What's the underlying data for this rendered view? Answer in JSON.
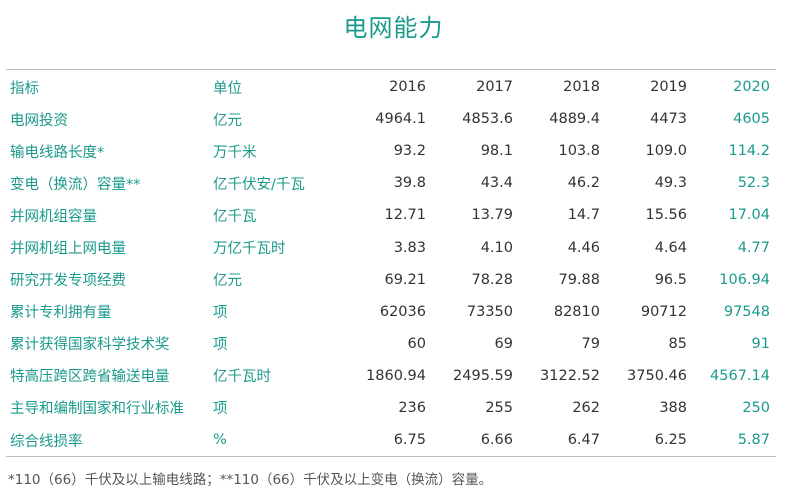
{
  "title": "电网能力",
  "header": [
    "指标",
    "单位",
    "2016",
    "2017",
    "2018",
    "2019",
    "2020"
  ],
  "rows": [
    {
      "label": "电网投资",
      "unit": "亿元",
      "values": [
        "4964.1",
        "4853.6",
        "4889.4",
        "4473",
        "4605"
      ]
    },
    {
      "label": "输电线路长度*",
      "unit": "万千米",
      "values": [
        "93.2",
        "98.1",
        "103.8",
        "109.0",
        "114.2"
      ]
    },
    {
      "label": "变电（换流）容量**",
      "unit": "亿千伏安/千瓦",
      "values": [
        "39.8",
        "43.4",
        "46.2",
        "49.3",
        "52.3"
      ]
    },
    {
      "label": "并网机组容量",
      "unit": "亿千瓦",
      "values": [
        "12.71",
        "13.79",
        "14.7",
        "15.56",
        "17.04"
      ]
    },
    {
      "label": "并网机组上网电量",
      "unit": "万亿千瓦时",
      "values": [
        "3.83",
        "4.10",
        "4.46",
        "4.64",
        "4.77"
      ]
    },
    {
      "label": "研究开发专项经费",
      "unit": "亿元",
      "values": [
        "69.21",
        "78.28",
        "79.88",
        "96.5",
        "106.94"
      ]
    },
    {
      "label": "累计专利拥有量",
      "unit": "项",
      "values": [
        "62036",
        "73350",
        "82810",
        "90712",
        "97548"
      ]
    },
    {
      "label": "累计获得国家科学技术奖",
      "unit": "项",
      "values": [
        "60",
        "69",
        "79",
        "85",
        "91"
      ]
    },
    {
      "label": "特高压跨区跨省输送电量",
      "unit": "亿千瓦时",
      "values": [
        "1860.94",
        "2495.59",
        "3122.52",
        "3750.46",
        "4567.14"
      ]
    },
    {
      "label": "主导和编制国家和行业标准",
      "unit": "项",
      "values": [
        "236",
        "255",
        "262",
        "388",
        "250"
      ]
    },
    {
      "label": "综合线损率",
      "unit": "%",
      "values": [
        "6.75",
        "6.66",
        "6.47",
        "6.25",
        "5.87"
      ]
    }
  ],
  "footnote": "*110（66）千伏及以上输电线路；**110（66）千伏及以上变电（换流）容量。"
}
